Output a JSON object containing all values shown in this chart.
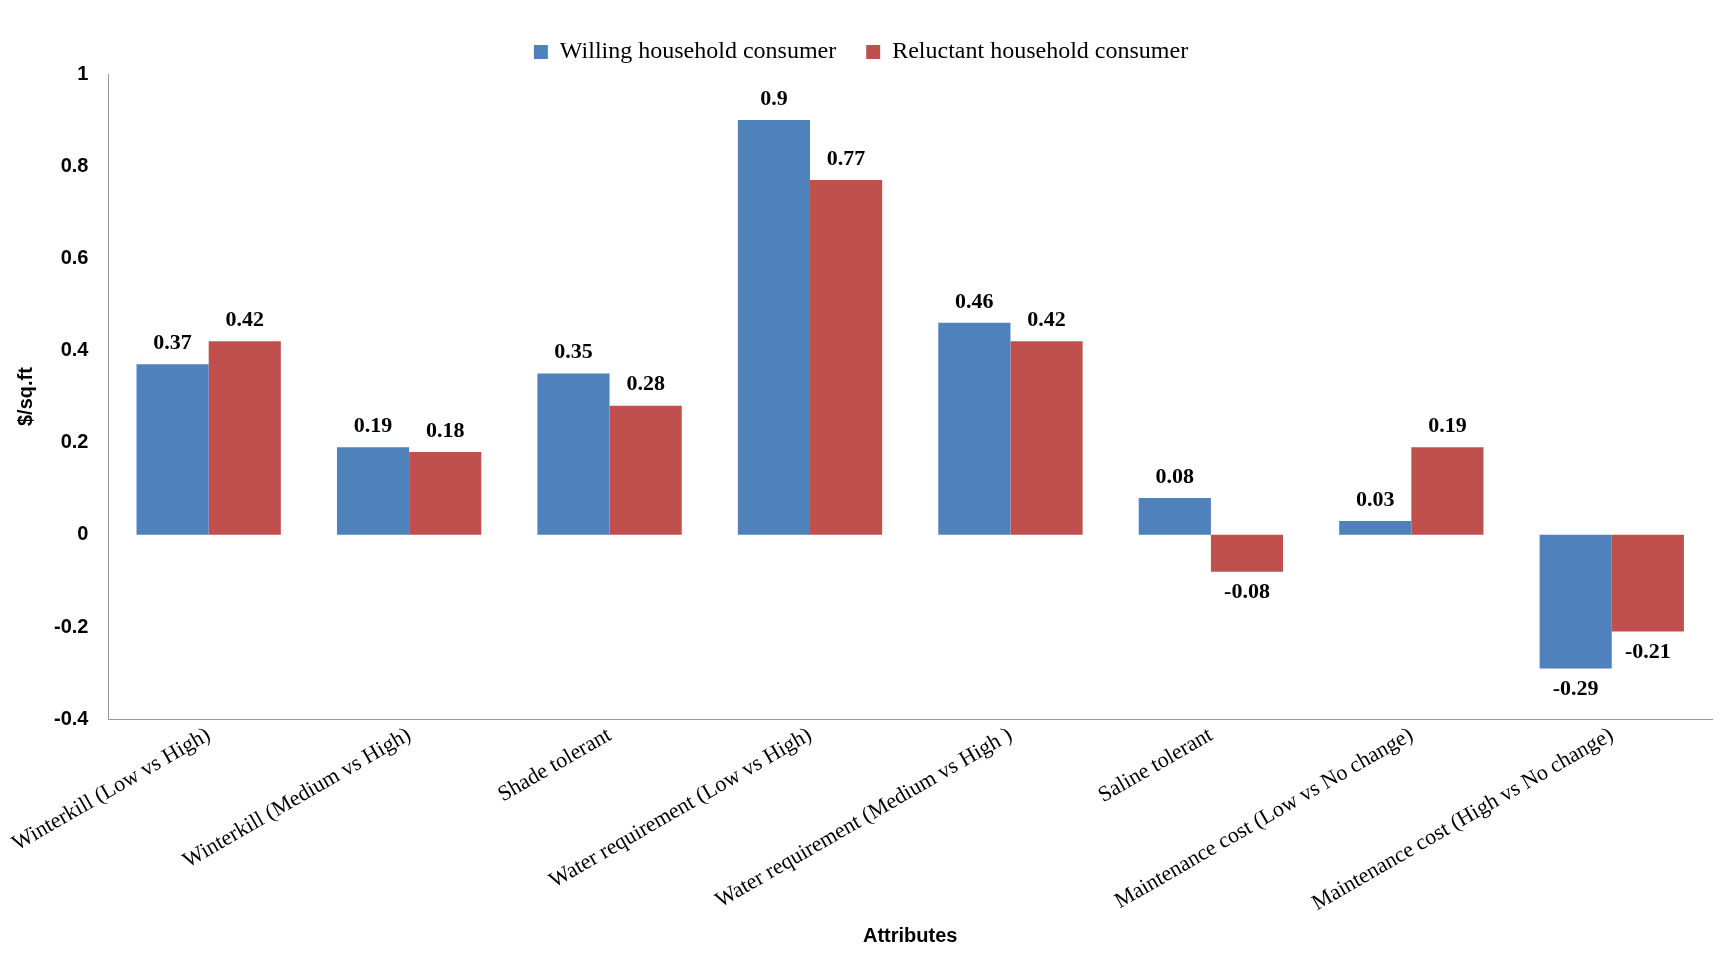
{
  "chart_data": {
    "type": "bar",
    "xlabel": "Attributes",
    "ylabel": "$/sq.ft",
    "categories": [
      "Winterkill (Low vs High)",
      "Winterkill (Medium vs High)",
      "Shade tolerant",
      "Water requirement (Low vs High)",
      "Water requirement (Medium vs High )",
      "Saline tolerant",
      "Maintenance cost (Low vs No change)",
      "Maintenance cost (High vs No change)"
    ],
    "series": [
      {
        "name": "Willing household consumer",
        "color": "#4f81bd",
        "values": [
          0.37,
          0.19,
          0.35,
          0.9,
          0.46,
          0.08,
          0.03,
          -0.29
        ]
      },
      {
        "name": "Reluctant household consumer",
        "color": "#c0504d",
        "values": [
          0.42,
          0.18,
          0.28,
          0.77,
          0.42,
          -0.08,
          0.19,
          -0.21
        ]
      }
    ],
    "ylim": [
      -0.4,
      1
    ],
    "yticks": [
      -0.4,
      -0.2,
      0,
      0.2,
      0.4,
      0.6,
      0.8,
      1
    ],
    "grid": false,
    "legend": "top",
    "data_labels": true
  }
}
